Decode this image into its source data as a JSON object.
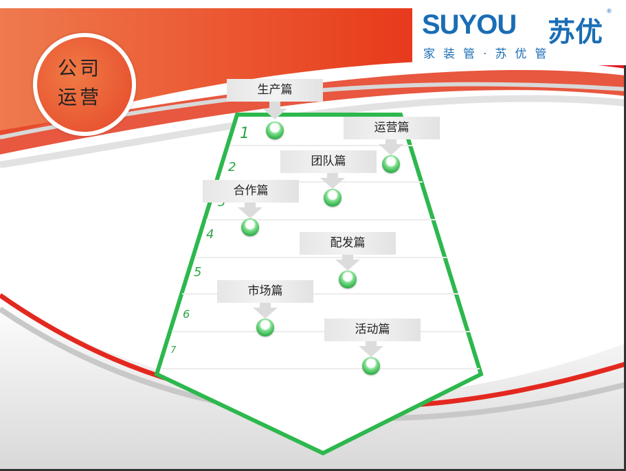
{
  "badge": {
    "line1": "公司",
    "line2": "运营"
  },
  "logo": {
    "brand_en": "SUYOU",
    "brand_cn": "苏优",
    "registered": "®",
    "slogan": "家装管·苏优管"
  },
  "diagram": {
    "levels": [
      "1",
      "2",
      "3",
      "4",
      "5",
      "6",
      "7"
    ],
    "items": [
      {
        "label": "生产篇",
        "level": 1
      },
      {
        "label": "运营篇",
        "level": 2
      },
      {
        "label": "团队篇",
        "level": 3
      },
      {
        "label": "合作篇",
        "level": 3
      },
      {
        "label": "配发篇",
        "level": 5
      },
      {
        "label": "市场篇",
        "level": 6
      },
      {
        "label": "活动篇",
        "level": 7
      }
    ]
  },
  "colors": {
    "accent_red": "#e31e24",
    "accent_orange": "#ee6a3c",
    "frame_green": "#2db84d",
    "brand_blue": "#1a6db5"
  }
}
